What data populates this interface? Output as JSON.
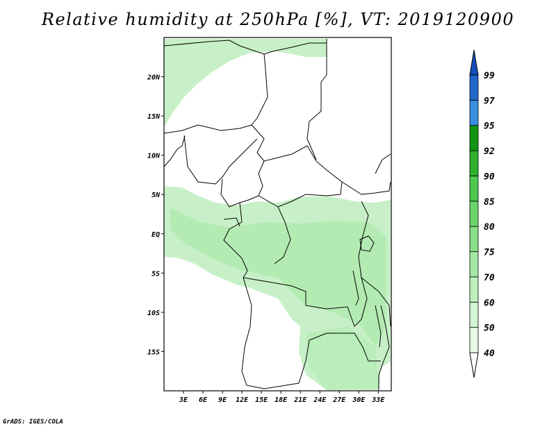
{
  "title": "Relative humidity at 250hPa [%], VT: 2019120900",
  "credit": "GrADS: IGES/COLA",
  "map": {
    "lon_ticks": [
      "3E",
      "6E",
      "9E",
      "12E",
      "15E",
      "18E",
      "21E",
      "24E",
      "27E",
      "30E",
      "33E"
    ],
    "lat_ticks": [
      "20N",
      "15N",
      "10N",
      "5N",
      "EQ",
      "5S",
      "10S",
      "15S"
    ],
    "lon_range": [
      0,
      35
    ],
    "lat_range": [
      -20,
      25
    ]
  },
  "colorbar": {
    "levels": [
      "40",
      "50",
      "60",
      "70",
      "75",
      "80",
      "85",
      "90",
      "92",
      "95",
      "97",
      "99"
    ],
    "colors": [
      "#ffffff",
      "#e6fae6",
      "#d4f5d4",
      "#bdf0bd",
      "#a3e8a3",
      "#86de86",
      "#6cd46c",
      "#4ec84e",
      "#2eb02e",
      "#129612",
      "#3a8ee0",
      "#2266cc",
      "#1450b8"
    ]
  }
}
